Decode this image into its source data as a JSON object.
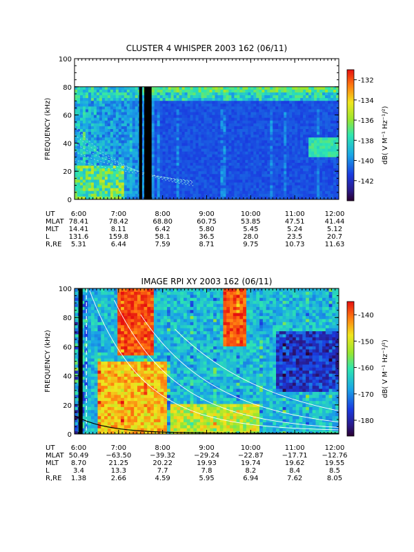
{
  "chart_data": [
    {
      "type": "heatmap",
      "title": "CLUSTER 4 WHISPER 2003 162 (06/11)",
      "ylabel": "FREQUENCY (kHz)",
      "ylim": [
        0,
        100
      ],
      "yticks": [
        "0",
        "20",
        "40",
        "60",
        "80",
        "100"
      ],
      "x_ticks": [
        "6:00",
        "7:00",
        "8:00",
        "9:00",
        "10:00",
        "11:00",
        "12:00"
      ],
      "xlim": [
        "6:00",
        "12:00"
      ],
      "colorbar": {
        "label": "dB( V M⁻¹ Hz⁻¹/²)",
        "range": [
          -144,
          -131
        ],
        "ticks": [
          "-132",
          "-134",
          "-136",
          "-138",
          "-140",
          "-142"
        ]
      },
      "data_ceiling_khz": 80,
      "data_gaps": [
        [
          "7:28",
          "7:32"
        ],
        [
          "7:35",
          "7:45"
        ]
      ],
      "orbit_table": {
        "rows": [
          {
            "label": "UT",
            "values": [
              "6:00",
              "7:00",
              "8:00",
              "9:00",
              "10:00",
              "11:00",
              "12:00"
            ]
          },
          {
            "label": "MLAT",
            "values": [
              "78.41",
              "78.42",
              "68.80",
              "60.75",
              "53.85",
              "47.51",
              "41.44"
            ]
          },
          {
            "label": "MLT",
            "values": [
              "14.41",
              "8.11",
              "6.42",
              "5.80",
              "5.45",
              "5.24",
              "5.12"
            ]
          },
          {
            "label": "L",
            "values": [
              "131.6",
              "159.8",
              "58.1",
              "36.5",
              "28.0",
              "23.5",
              "20.7"
            ]
          },
          {
            "label": "R,RE",
            "values": [
              "5.31",
              "6.44",
              "7.59",
              "8.71",
              "9.75",
              "10.73",
              "11.63"
            ]
          }
        ]
      },
      "colors": {
        "background": "#1a2bd6",
        "ceiling_line": "#ffffff",
        "gap": "#000000"
      }
    },
    {
      "type": "heatmap",
      "title": "IMAGE RPI XY 2003 162 (06/11)",
      "ylabel": "FREQUENCY (kHz)",
      "ylim": [
        0,
        100
      ],
      "yticks": [
        "0",
        "20",
        "40",
        "60",
        "80",
        "100"
      ],
      "x_ticks": [
        "6:00",
        "7:00",
        "8:00",
        "9:00",
        "10:00",
        "11:00",
        "12:00"
      ],
      "xlim": [
        "6:00",
        "12:00"
      ],
      "colorbar": {
        "label": "dB( V M⁻¹ Hz⁻¹/²)",
        "range": [
          -186,
          -135
        ],
        "ticks": [
          "-140",
          "-150",
          "-160",
          "-170",
          "-180"
        ]
      },
      "orbit_table": {
        "rows": [
          {
            "label": "UT",
            "values": [
              "6:00",
              "7:00",
              "8:00",
              "9:00",
              "10:00",
              "11:00",
              "12:00"
            ]
          },
          {
            "label": "MLAT",
            "values": [
              "50.49",
              "−63.50",
              "−39.32",
              "−29.24",
              "−22.87",
              "−17.71",
              "−12.76"
            ]
          },
          {
            "label": "MLT",
            "values": [
              "8.70",
              "21.25",
              "20.22",
              "19.93",
              "19.74",
              "19.62",
              "19.55"
            ]
          },
          {
            "label": "L",
            "values": [
              "3.4",
              "13.3",
              "7.7",
              "7.8",
              "8.2",
              "8.4",
              "8.5"
            ]
          },
          {
            "label": "R,RE",
            "values": [
              "1.38",
              "2.66",
              "4.59",
              "5.95",
              "6.94",
              "7.62",
              "8.05"
            ]
          }
        ]
      },
      "colors": {
        "background": "#1a2bd6",
        "overlay_lines": "#ffffff",
        "cutoff_line": "#000000"
      }
    }
  ]
}
